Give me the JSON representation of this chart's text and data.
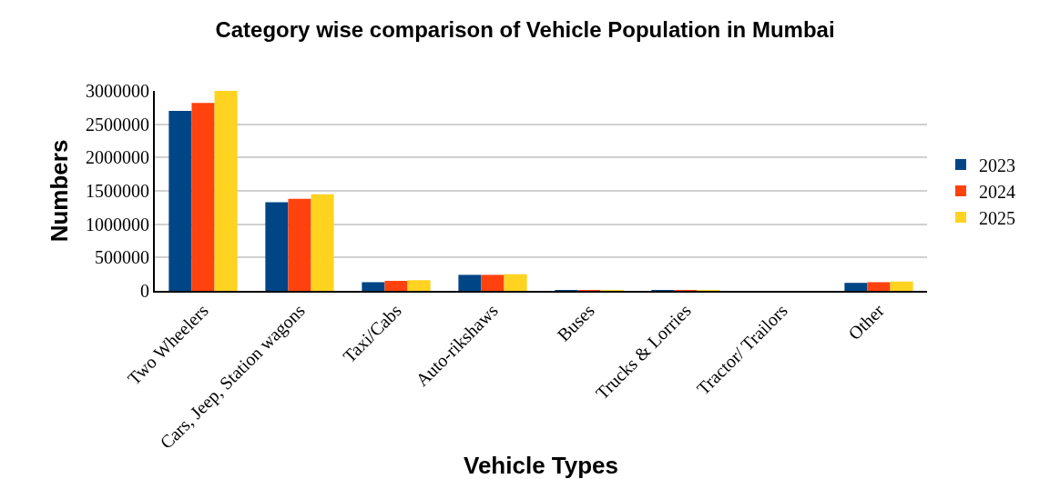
{
  "chart_data": {
    "type": "bar",
    "title": "Category wise comparison of Vehicle Population in Mumbai",
    "xlabel": "Vehicle Types",
    "ylabel": "Numbers",
    "categories": [
      "Two Wheelers",
      "Cars, Jeep, Station wagons",
      "Taxi/Cabs",
      "Auto-rikshaws",
      "Buses",
      "Trucks & Lorries",
      "Tractor/ Trailors",
      "Other"
    ],
    "series": [
      {
        "name": "2023",
        "color": "#004586",
        "values": [
          2700000,
          1330000,
          130000,
          240000,
          5000,
          5000,
          0,
          120000
        ]
      },
      {
        "name": "2024",
        "color": "#ff420e",
        "values": [
          2820000,
          1380000,
          150000,
          240000,
          5000,
          5000,
          0,
          130000
        ]
      },
      {
        "name": "2025",
        "color": "#ffd320",
        "values": [
          3000000,
          1450000,
          160000,
          250000,
          5000,
          5000,
          0,
          140000
        ]
      }
    ],
    "ylim": [
      0,
      3000000
    ],
    "yticks": [
      0,
      500000,
      1000000,
      1500000,
      2000000,
      2500000,
      3000000
    ],
    "grid": "y",
    "legend": "right"
  }
}
